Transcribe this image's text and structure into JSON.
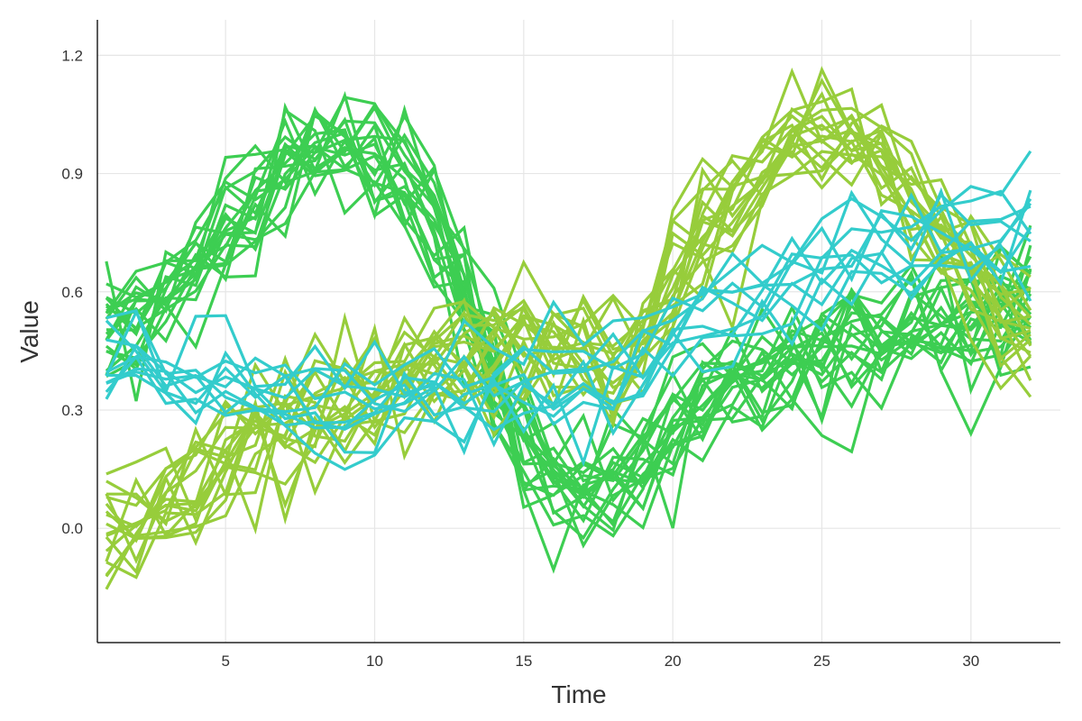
{
  "chart_data": {
    "type": "line",
    "title": "",
    "xlabel": "Time",
    "ylabel": "Value",
    "xlim": [
      0.7,
      33.0
    ],
    "ylim": [
      -0.29,
      1.29
    ],
    "x_ticks": [
      5,
      10,
      15,
      20,
      25,
      30
    ],
    "y_ticks": [
      0.0,
      0.3,
      0.6,
      0.9
    ],
    "y_tick_labels": [
      "0.0",
      "0.3",
      "0.6",
      "0.9"
    ],
    "top_tick_label": "1.2",
    "grid": true,
    "legend": "none",
    "x": [
      1,
      2,
      3,
      4,
      5,
      6,
      7,
      8,
      9,
      10,
      11,
      12,
      13,
      14,
      15,
      16,
      17,
      18,
      19,
      20,
      21,
      22,
      23,
      24,
      25,
      26,
      27,
      28,
      29,
      30,
      31,
      32
    ],
    "groups": [
      {
        "color": "#3dce52",
        "profile": [
          0.52,
          0.55,
          0.58,
          0.66,
          0.76,
          0.85,
          0.93,
          0.98,
          1.0,
          0.97,
          0.9,
          0.78,
          0.6,
          0.4,
          0.22,
          0.12,
          0.1,
          0.13,
          0.2,
          0.28,
          0.33,
          0.36,
          0.38,
          0.41,
          0.44,
          0.46,
          0.48,
          0.5,
          0.52,
          0.55,
          0.57,
          0.58
        ],
        "traces": 20,
        "noise": 0.08
      },
      {
        "color": "#97cd3b",
        "profile": [
          0.0,
          0.02,
          0.06,
          0.12,
          0.18,
          0.22,
          0.25,
          0.28,
          0.31,
          0.34,
          0.37,
          0.39,
          0.42,
          0.45,
          0.47,
          0.47,
          0.44,
          0.42,
          0.5,
          0.62,
          0.75,
          0.85,
          0.92,
          0.98,
          1.02,
          1.0,
          0.95,
          0.85,
          0.75,
          0.65,
          0.55,
          0.5
        ],
        "traces": 18,
        "noise": 0.08
      },
      {
        "color": "#33cccc",
        "profile": [
          0.43,
          0.4,
          0.38,
          0.36,
          0.35,
          0.33,
          0.31,
          0.3,
          0.3,
          0.31,
          0.32,
          0.33,
          0.34,
          0.35,
          0.35,
          0.35,
          0.36,
          0.38,
          0.42,
          0.47,
          0.52,
          0.56,
          0.59,
          0.62,
          0.64,
          0.66,
          0.68,
          0.7,
          0.72,
          0.73,
          0.75,
          0.77
        ],
        "traces": 10,
        "noise": 0.06
      }
    ]
  }
}
